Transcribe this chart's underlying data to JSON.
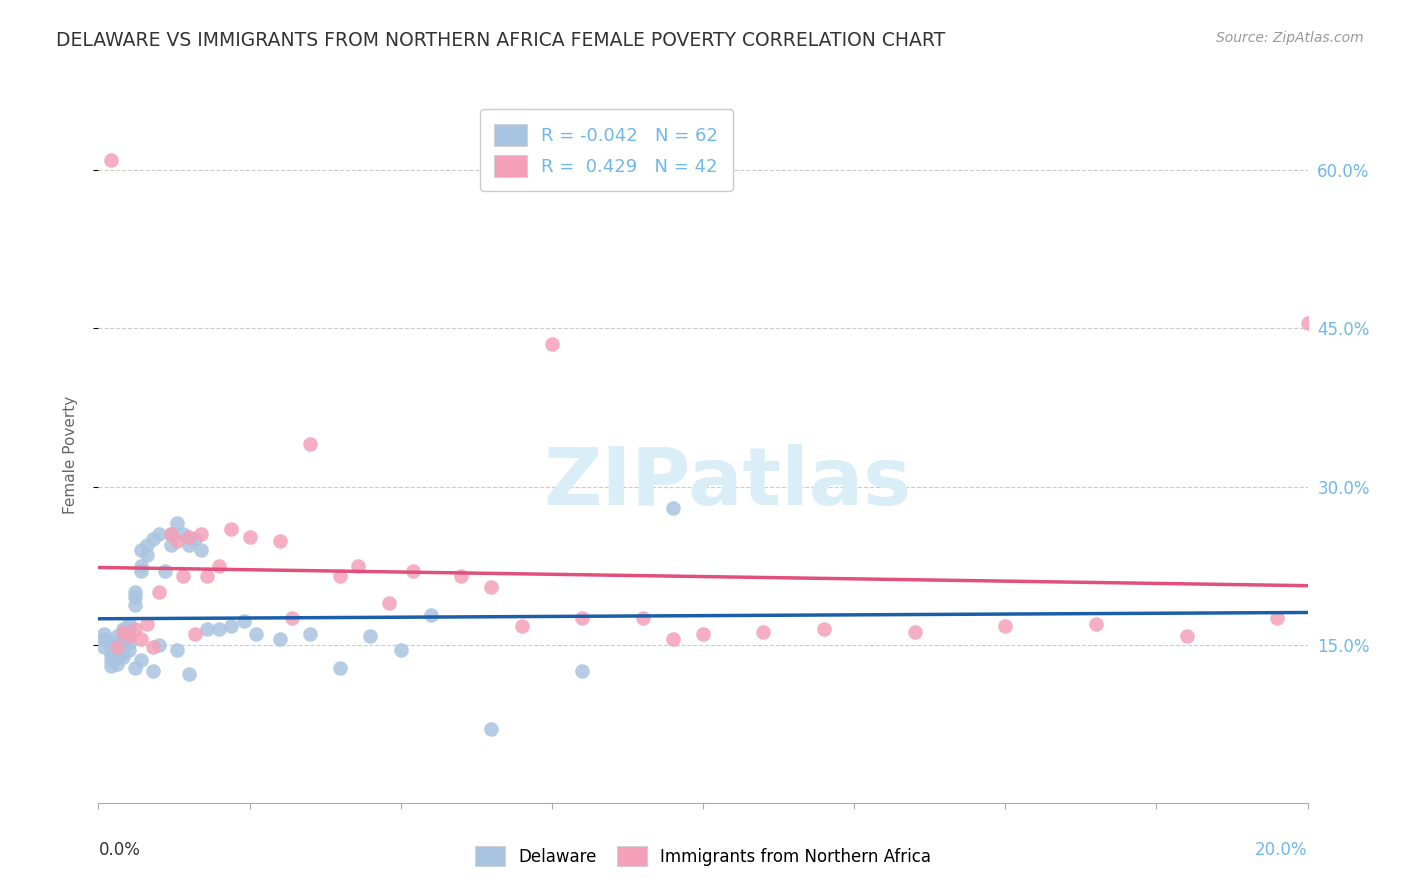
{
  "title": "DELAWARE VS IMMIGRANTS FROM NORTHERN AFRICA FEMALE POVERTY CORRELATION CHART",
  "source": "Source: ZipAtlas.com",
  "ylabel": "Female Poverty",
  "xlim": [
    0.0,
    0.2
  ],
  "ylim": [
    0.0,
    0.66
  ],
  "yticks": [
    0.15,
    0.3,
    0.45,
    0.6
  ],
  "ytick_labels": [
    "15.0%",
    "30.0%",
    "45.0%",
    "60.0%"
  ],
  "legend_labels": [
    "Delaware",
    "Immigrants from Northern Africa"
  ],
  "R_delaware": -0.042,
  "N_delaware": 62,
  "R_immigrants": 0.429,
  "N_immigrants": 42,
  "color_delaware": "#a8c4e0",
  "color_immigrants": "#f4a0b8",
  "color_line_delaware": "#1a5fa8",
  "color_line_immigrants": "#e0507a",
  "color_right_axis": "#70b8e8",
  "color_title": "#333333",
  "color_source": "#999999",
  "watermark": "ZIPatlas",
  "watermark_color": "#daeef8",
  "delaware_x": [
    0.001,
    0.001,
    0.001,
    0.002,
    0.002,
    0.002,
    0.002,
    0.002,
    0.003,
    0.003,
    0.003,
    0.003,
    0.003,
    0.004,
    0.004,
    0.004,
    0.004,
    0.004,
    0.004,
    0.005,
    0.005,
    0.005,
    0.005,
    0.005,
    0.006,
    0.006,
    0.006,
    0.006,
    0.007,
    0.007,
    0.007,
    0.007,
    0.008,
    0.008,
    0.009,
    0.009,
    0.01,
    0.01,
    0.011,
    0.012,
    0.012,
    0.013,
    0.013,
    0.014,
    0.015,
    0.015,
    0.016,
    0.017,
    0.018,
    0.02,
    0.022,
    0.024,
    0.026,
    0.03,
    0.035,
    0.04,
    0.045,
    0.05,
    0.055,
    0.065,
    0.08,
    0.095
  ],
  "delaware_y": [
    0.16,
    0.155,
    0.148,
    0.152,
    0.145,
    0.14,
    0.135,
    0.13,
    0.158,
    0.15,
    0.145,
    0.138,
    0.132,
    0.165,
    0.162,
    0.155,
    0.148,
    0.142,
    0.138,
    0.17,
    0.165,
    0.158,
    0.152,
    0.145,
    0.2,
    0.195,
    0.188,
    0.128,
    0.225,
    0.24,
    0.22,
    0.135,
    0.245,
    0.235,
    0.25,
    0.125,
    0.255,
    0.15,
    0.22,
    0.255,
    0.245,
    0.265,
    0.145,
    0.255,
    0.245,
    0.122,
    0.25,
    0.24,
    0.165,
    0.165,
    0.168,
    0.172,
    0.16,
    0.155,
    0.16,
    0.128,
    0.158,
    0.145,
    0.178,
    0.07,
    0.125,
    0.28
  ],
  "immigrants_x": [
    0.002,
    0.003,
    0.004,
    0.005,
    0.006,
    0.007,
    0.008,
    0.009,
    0.01,
    0.012,
    0.013,
    0.014,
    0.015,
    0.016,
    0.017,
    0.018,
    0.02,
    0.022,
    0.025,
    0.03,
    0.032,
    0.035,
    0.04,
    0.043,
    0.048,
    0.052,
    0.06,
    0.065,
    0.07,
    0.075,
    0.08,
    0.09,
    0.095,
    0.1,
    0.11,
    0.12,
    0.135,
    0.15,
    0.165,
    0.18,
    0.195,
    0.2
  ],
  "immigrants_y": [
    0.61,
    0.148,
    0.162,
    0.158,
    0.165,
    0.155,
    0.17,
    0.148,
    0.2,
    0.255,
    0.248,
    0.215,
    0.252,
    0.16,
    0.255,
    0.215,
    0.225,
    0.26,
    0.252,
    0.248,
    0.175,
    0.34,
    0.215,
    0.225,
    0.19,
    0.22,
    0.215,
    0.205,
    0.168,
    0.435,
    0.175,
    0.175,
    0.155,
    0.16,
    0.162,
    0.165,
    0.162,
    0.168,
    0.17,
    0.158,
    0.175,
    0.455
  ]
}
